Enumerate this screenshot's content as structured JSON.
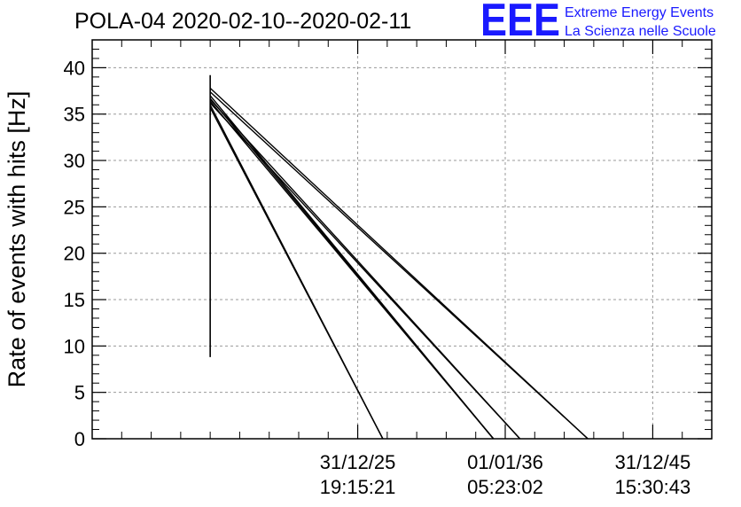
{
  "colors": {
    "logo": "#1a1aff",
    "data": "#000000",
    "grid": "#9a9a9a"
  },
  "logo": {
    "mark": "EEE",
    "line1": "Extreme Energy Events",
    "line2": "La Scienza nelle Scuole"
  },
  "chart_data": {
    "type": "line",
    "title": "POLA-04 2020-02-10--2020-02-11",
    "ylabel": "Rate of events with hits [Hz]",
    "xlabel": "",
    "grid": true,
    "ylim": [
      0,
      43
    ],
    "yticks": [
      0,
      5,
      10,
      15,
      20,
      25,
      30,
      35,
      40
    ],
    "x_ticks": [
      {
        "x": 1.0,
        "label_date": "31/12/25",
        "label_time": "19:15:21"
      },
      {
        "x": 2.0,
        "label_date": "01/01/36",
        "label_time": "05:23:02"
      },
      {
        "x": 3.0,
        "label_date": "31/12/45",
        "label_time": "15:30:43"
      }
    ],
    "xlim": [
      -0.8,
      3.4
    ],
    "vertical_segment": {
      "x": 0.0,
      "y": [
        8.8,
        39.2
      ]
    },
    "series": [
      {
        "x": [
          0.0,
          2.56
        ],
        "y": [
          37.8,
          0
        ]
      },
      {
        "x": [
          0.0,
          2.56
        ],
        "y": [
          37.4,
          0
        ]
      },
      {
        "x": [
          0.0,
          1.92
        ],
        "y": [
          37.0,
          0
        ]
      },
      {
        "x": [
          0.0,
          1.92
        ],
        "y": [
          36.7,
          0
        ]
      },
      {
        "x": [
          0.0,
          1.92
        ],
        "y": [
          36.4,
          0
        ]
      },
      {
        "x": [
          0.0,
          2.1
        ],
        "y": [
          36.2,
          0
        ]
      },
      {
        "x": [
          0.0,
          2.1
        ],
        "y": [
          36.6,
          0
        ]
      },
      {
        "x": [
          0.0,
          1.17
        ],
        "y": [
          36.0,
          0
        ]
      },
      {
        "x": [
          0.0,
          1.17
        ],
        "y": [
          35.7,
          0
        ]
      }
    ]
  }
}
